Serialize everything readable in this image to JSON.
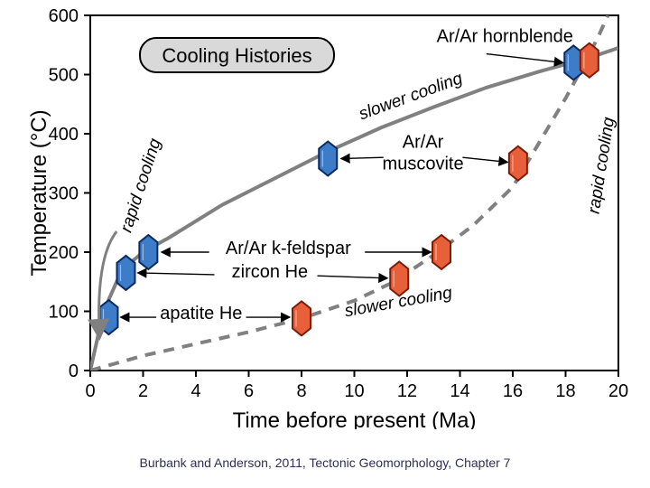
{
  "chart": {
    "type": "line-scatter",
    "title_box": "Cooling Histories",
    "xlabel": "Time before present (Ma)",
    "ylabel": "Temperature (°C)",
    "xlim": [
      0,
      20
    ],
    "ylim": [
      0,
      600
    ],
    "xticks": [
      0,
      2,
      4,
      6,
      8,
      10,
      12,
      14,
      16,
      18,
      20
    ],
    "yticks": [
      0,
      100,
      200,
      300,
      400,
      500,
      600
    ],
    "background_color": "#ffffff",
    "grid_color": "#d0d0d0",
    "axis_color": "#000000",
    "axis_width": 2,
    "tick_len": 7,
    "label_fontsize": 24,
    "tick_fontsize": 20,
    "curves": {
      "rapid": {
        "dash": "",
        "width": 4,
        "color": "#808080",
        "points": [
          [
            0,
            0
          ],
          [
            0.3,
            60
          ],
          [
            0.7,
            120
          ],
          [
            1.2,
            170
          ],
          [
            2,
            200
          ],
          [
            3,
            225
          ],
          [
            5,
            280
          ],
          [
            7,
            325
          ],
          [
            9,
            370
          ],
          [
            11,
            410
          ],
          [
            13,
            445
          ],
          [
            15,
            478
          ],
          [
            17,
            505
          ],
          [
            19,
            530
          ],
          [
            20,
            545
          ]
        ]
      },
      "slow": {
        "dash": "12 9",
        "width": 4,
        "color": "#808080",
        "points": [
          [
            0,
            0
          ],
          [
            2,
            25
          ],
          [
            4,
            45
          ],
          [
            6,
            65
          ],
          [
            8,
            88
          ],
          [
            10,
            118
          ],
          [
            11.5,
            150
          ],
          [
            13,
            195
          ],
          [
            14.5,
            245
          ],
          [
            16,
            310
          ],
          [
            17,
            385
          ],
          [
            18,
            460
          ],
          [
            18.8,
            525
          ],
          [
            19.3,
            570
          ],
          [
            19.6,
            600
          ]
        ]
      }
    },
    "markers_blue": [
      {
        "x": 0.7,
        "y": 90
      },
      {
        "x": 1.35,
        "y": 165
      },
      {
        "x": 2.2,
        "y": 200
      },
      {
        "x": 9.0,
        "y": 358
      },
      {
        "x": 18.3,
        "y": 520
      }
    ],
    "markers_red": [
      {
        "x": 8.0,
        "y": 88
      },
      {
        "x": 11.7,
        "y": 155
      },
      {
        "x": 13.3,
        "y": 200
      },
      {
        "x": 16.2,
        "y": 350
      },
      {
        "x": 18.9,
        "y": 524
      }
    ],
    "marker_style": {
      "blue_fill": "#3d7cc9",
      "blue_stroke": "#0a2a60",
      "red_fill": "#e8603a",
      "red_stroke": "#7a1c08",
      "stroke_w": 2,
      "w": 20,
      "h": 38
    },
    "annotations": {
      "hornblende": "Ar/Ar hornblende",
      "muscovite_l1": "Ar/Ar",
      "muscovite_l2": "muscovite",
      "kfeldspar": "Ar/Ar k-feldspar",
      "zircon": "zircon He",
      "apatite": "apatite He",
      "slower1": "slower cooling",
      "slower2": "slower cooling",
      "rapid": "rapid cooling",
      "rapid2": "rapid cooling"
    }
  },
  "caption": "Burbank and Anderson, 2011, Tectonic Geomorphology, Chapter 7"
}
